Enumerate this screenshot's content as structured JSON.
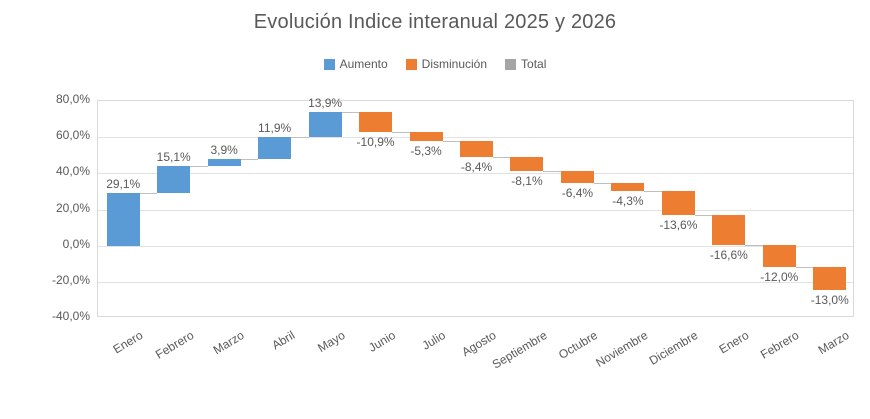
{
  "title": "Evolución Indice interanual 2025 y 2026",
  "legend": [
    {
      "label": "Aumento",
      "color": "#5B9BD5"
    },
    {
      "label": "Disminución",
      "color": "#ED7D31"
    },
    {
      "label": "Total",
      "color": "#A5A5A5"
    }
  ],
  "chart_data": {
    "type": "bar",
    "subtype": "waterfall",
    "title": "Evolución Indice interanual 2025 y 2026",
    "categories": [
      "Enero",
      "Febrero",
      "Marzo",
      "Abril",
      "Mayo",
      "Junio",
      "Julio",
      "Agosto",
      "Septiembre",
      "Octubre",
      "Noviembre",
      "Diciembre",
      "Enero",
      "Febrero",
      "Marzo"
    ],
    "values": [
      29.1,
      15.1,
      3.9,
      11.9,
      13.9,
      -10.9,
      -5.3,
      -8.4,
      -8.1,
      -6.4,
      -4.3,
      -13.6,
      -16.6,
      -12.0,
      -13.0
    ],
    "value_labels": [
      "29,1%",
      "15,1%",
      "3,9%",
      "11,9%",
      "13,9%",
      "-10,9%",
      "-5,3%",
      "-8,4%",
      "-8,1%",
      "-6,4%",
      "-4,3%",
      "-13,6%",
      "-16,6%",
      "-12,0%",
      "-13,0%"
    ],
    "cumulative": [
      29.1,
      44.2,
      48.1,
      60.0,
      73.9,
      63.0,
      57.7,
      49.3,
      41.2,
      34.8,
      30.5,
      16.9,
      0.3,
      -11.7,
      -24.7
    ],
    "xlabel": "",
    "ylabel": "",
    "ylim": [
      -40,
      80
    ],
    "y_tick_values": [
      80,
      60,
      40,
      20,
      0,
      -20,
      -40
    ],
    "y_ticks": [
      "80,0%",
      "60,0%",
      "40,0%",
      "20,0%",
      "0,0%",
      "-20,0%",
      "-40,0%"
    ],
    "grid": true,
    "legend_position": "top",
    "legend_entries": [
      "Aumento",
      "Disminución",
      "Total"
    ],
    "colors": {
      "increase": "#5B9BD5",
      "decrease": "#ED7D31",
      "total": "#A5A5A5",
      "gridline": "#E2E2E2",
      "connector": "#BFBFBF",
      "text": "#595959",
      "background": "#FFFFFF"
    }
  }
}
